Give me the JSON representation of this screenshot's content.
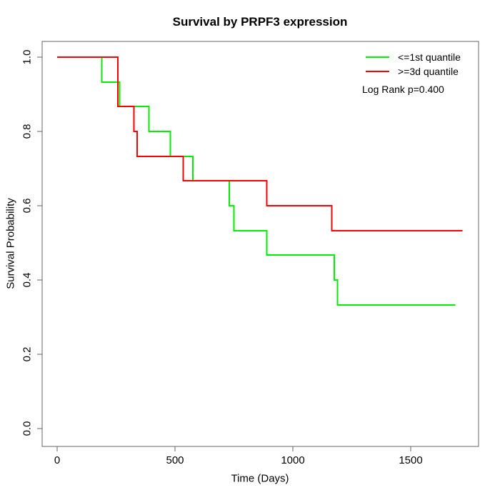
{
  "chart_data": {
    "type": "line",
    "subtype": "kaplan-meier-step-survival",
    "title": "Survival by PRPF3 expression",
    "xlabel": "Time (Days)",
    "ylabel": "Survival Probability",
    "xlim": [
      0,
      1790
    ],
    "ylim": [
      0,
      1
    ],
    "grid": false,
    "legend_position": "top-right",
    "x_ticks": {
      "values": [
        0,
        500,
        1000,
        1500
      ],
      "labels": [
        "0",
        "500",
        "1000",
        "1500"
      ]
    },
    "y_ticks": {
      "values": [
        0,
        0.2,
        0.4,
        0.6,
        0.8,
        1.0
      ],
      "labels": [
        "0.0",
        "0.2",
        "0.4",
        "0.6",
        "0.8",
        "1.0"
      ]
    },
    "series": [
      {
        "id": "low-expression",
        "name": "<=1st quantile",
        "color": "#00ee00",
        "points": [
          [
            0,
            1.0
          ],
          [
            190,
            0.933
          ],
          [
            265,
            0.867
          ],
          [
            390,
            0.8
          ],
          [
            480,
            0.733
          ],
          [
            575,
            0.667
          ],
          [
            730,
            0.6
          ],
          [
            750,
            0.533
          ],
          [
            890,
            0.467
          ],
          [
            1175,
            0.4
          ],
          [
            1190,
            0.333
          ]
        ],
        "end_time": 1690
      },
      {
        "id": "high-expression",
        "name": ">=3d quantile",
        "color": "#ff0000",
        "points": [
          [
            0,
            1.0
          ],
          [
            258,
            0.867
          ],
          [
            325,
            0.8
          ],
          [
            340,
            0.733
          ],
          [
            535,
            0.667
          ],
          [
            890,
            0.6
          ],
          [
            1165,
            0.533
          ]
        ],
        "end_time": 1720
      }
    ],
    "annotations": [
      "Log Rank p=0.400"
    ]
  }
}
